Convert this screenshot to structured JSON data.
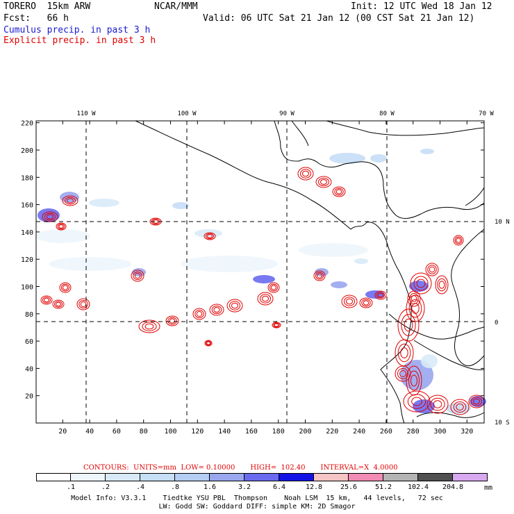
{
  "header": {
    "model": "TORERO  15km ARW",
    "org": "NCAR/MMM",
    "init": "Init: 12 UTC Wed 18 Jan 12",
    "fcst": "Fcst:   66 h",
    "valid": "Valid: 06 UTC Sat 21 Jan 12 (00 CST Sat 21 Jan 12)",
    "field1": "Cumulus precip. in past 3 h",
    "field2": "Explicit precip. in past 3 h"
  },
  "colors": {
    "cumulus": "#1a1ad0",
    "explicit": "#e00000",
    "coast": "#000000"
  },
  "map": {
    "x_ticks": [
      "20",
      "40",
      "60",
      "80",
      "100",
      "120",
      "140",
      "160",
      "180",
      "200",
      "220",
      "240",
      "260",
      "280",
      "300",
      "320"
    ],
    "y_ticks": [
      "20",
      "40",
      "60",
      "80",
      "100",
      "120",
      "140",
      "160",
      "180",
      "200",
      "220"
    ],
    "lon_labels": [
      "110 W",
      "100 W",
      "90 W",
      "80 W",
      "70 W"
    ],
    "lat_labels": [
      "10 N",
      "0",
      "10 S"
    ]
  },
  "legend": {
    "contours": [
      "CONTOURS:  UNITS=mm  LOW= 0.10000",
      "HIGH=  102.40",
      "INTERVAL=X  4.0000"
    ],
    "values": [
      ".1",
      ".2",
      ".4",
      ".8",
      "1.6",
      "3.2",
      "6.4",
      "12.8",
      "25.6",
      "51.2",
      "102.4",
      "204.8"
    ],
    "unit": "mm",
    "colors": [
      "#ffffff",
      "#eef6fc",
      "#d8eaf8",
      "#c6def6",
      "#b4cdf2",
      "#9aa6ee",
      "#6a6af0",
      "#1212e6",
      "#f6c4c4",
      "#f28cb4",
      "#b4b4b4",
      "#505050",
      "#d8a8f0"
    ]
  },
  "footer": {
    "line1": "Model Info: V3.3.1    Tiedtke YSU PBL  Thompson    Noah LSM  15 km,   44 levels,   72 sec",
    "line2": "LW: Godd SW: Goddard DIFF: simple KM: 2D Smagor"
  }
}
